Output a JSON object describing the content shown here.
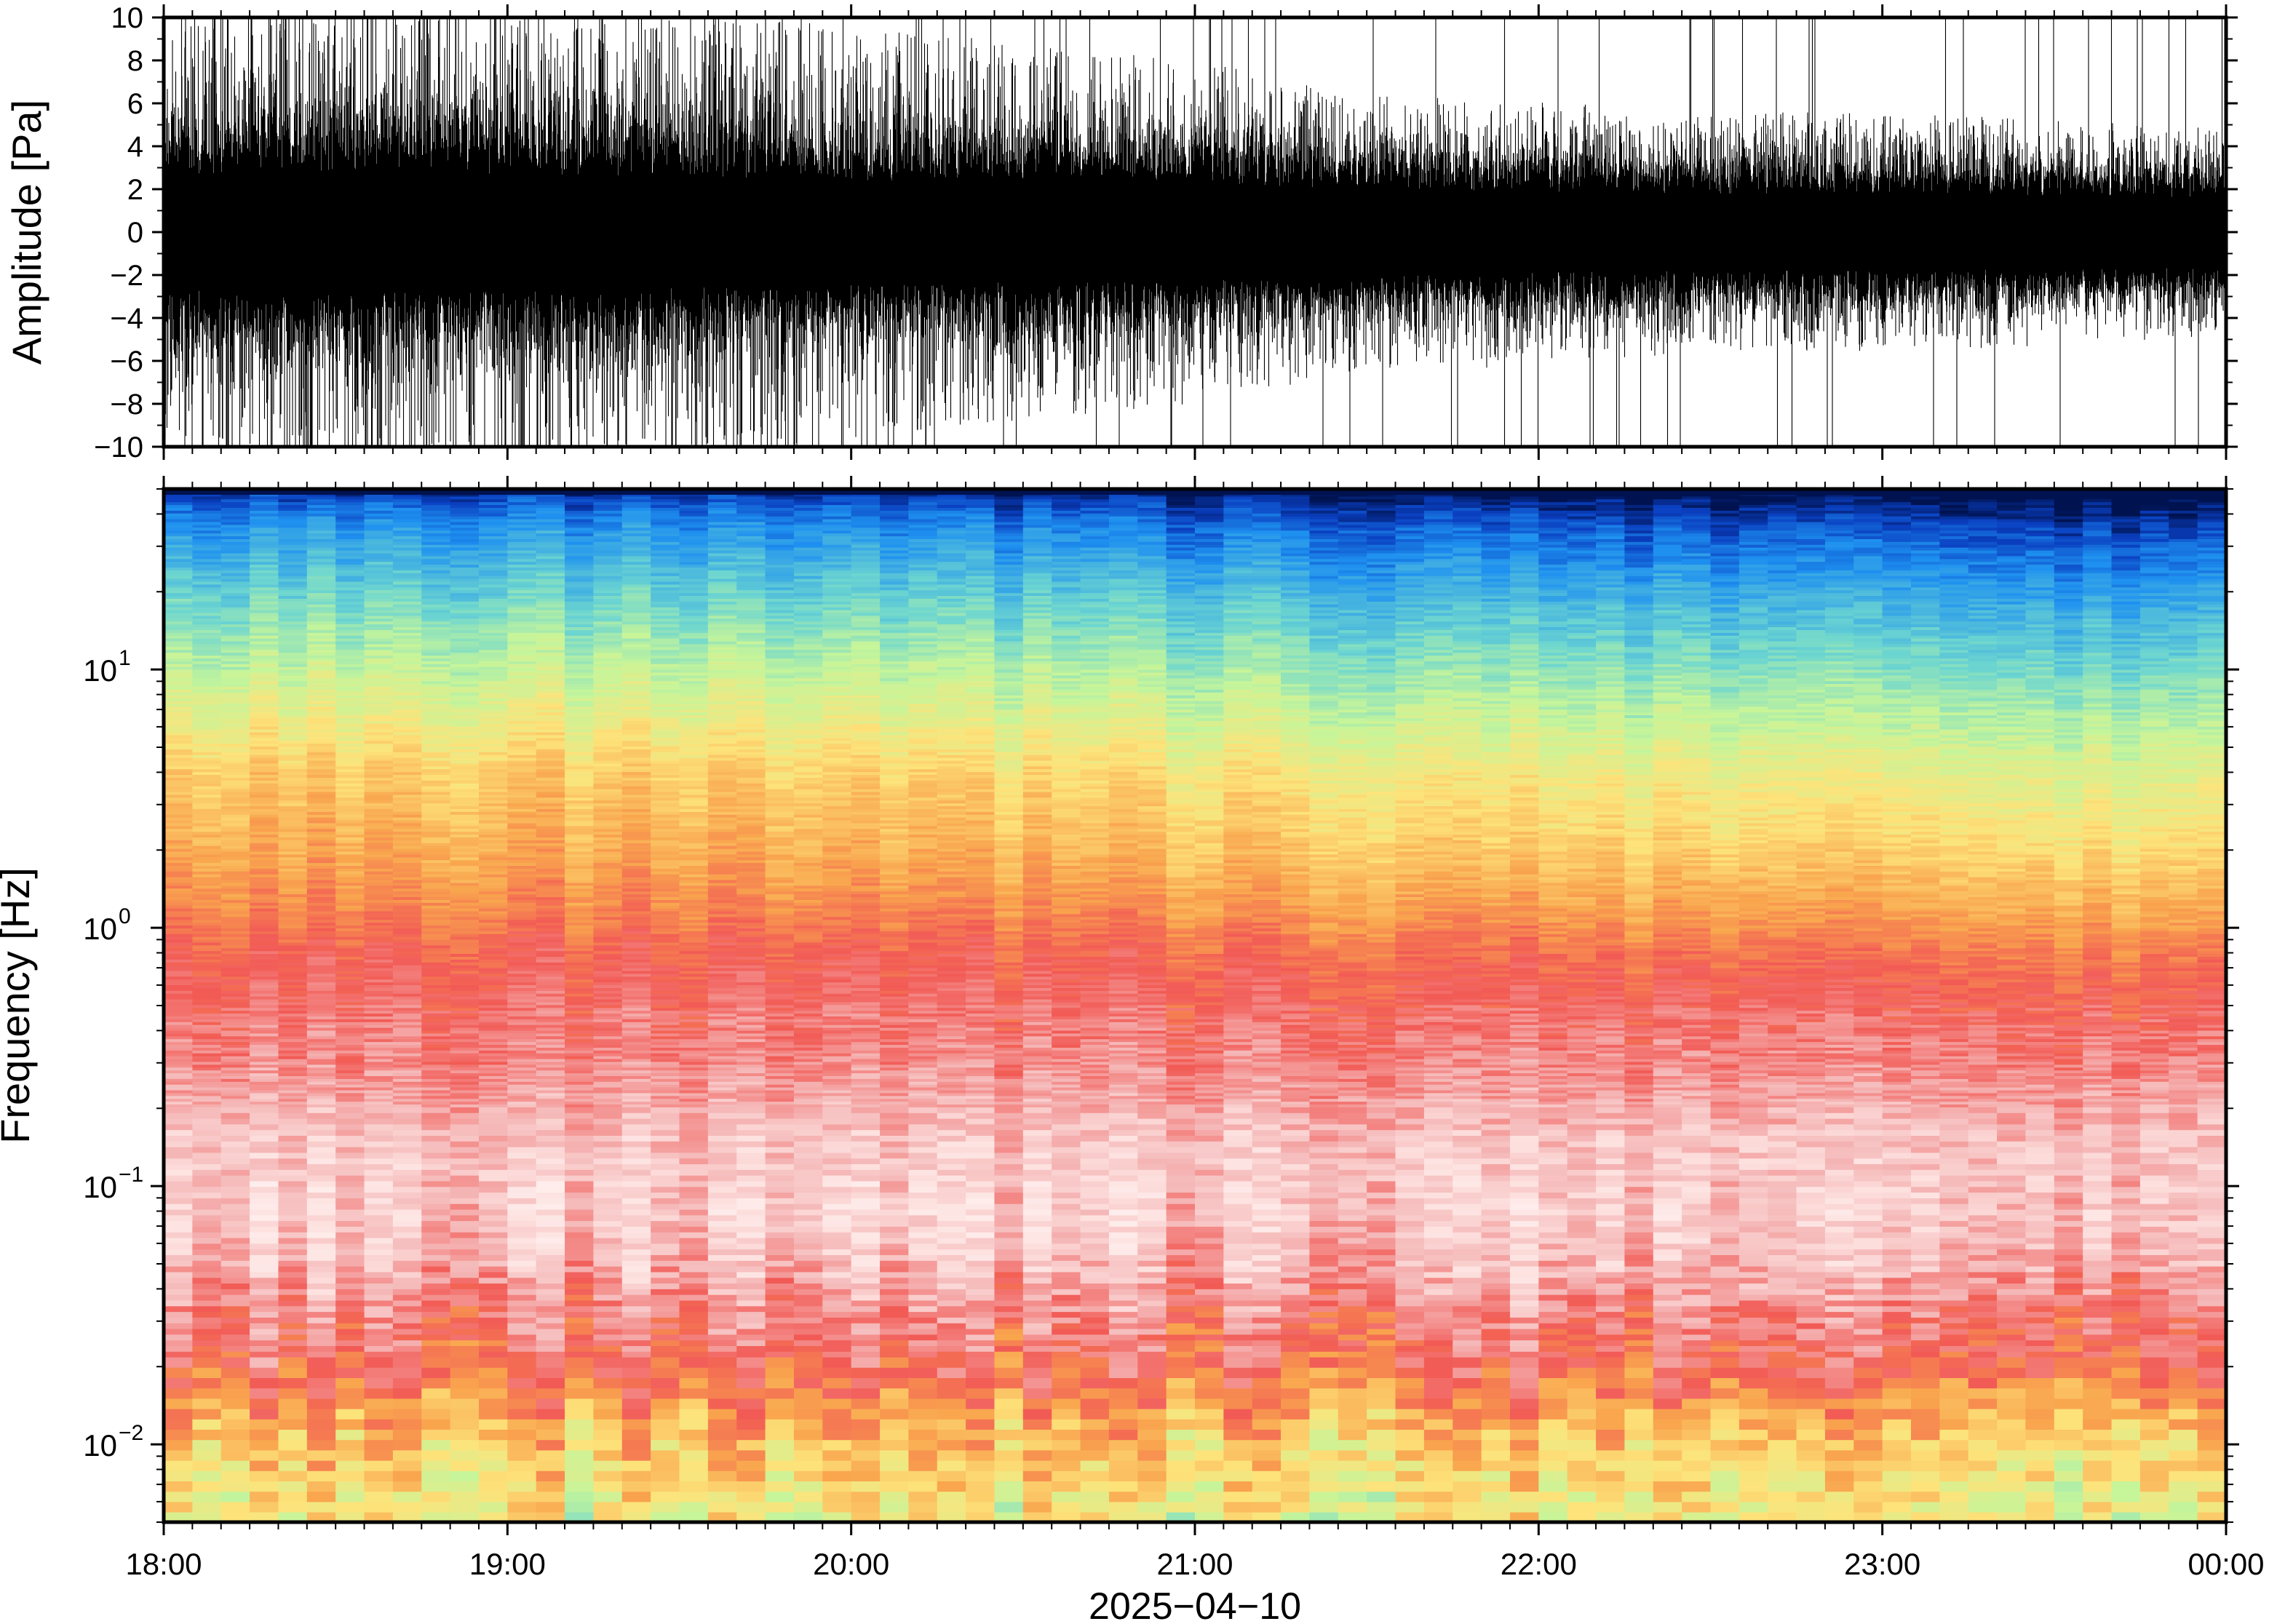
{
  "chart_data": [
    {
      "type": "line",
      "panel": "waveform",
      "ylabel": "Amplitude [Pa]",
      "ylim": [
        -10,
        10
      ],
      "yticks": [
        -10,
        -8,
        -6,
        -4,
        -2,
        0,
        2,
        4,
        6,
        8,
        10
      ],
      "ytick_labels": [
        "−10",
        "−8",
        "−6",
        "−4",
        "−2",
        "0",
        "2",
        "4",
        "6",
        "8",
        "10"
      ],
      "xlim": [
        "2025-04-10 18:00",
        "2025-04-11 00:00"
      ],
      "line_color": "#000000",
      "envelope_profile": {
        "x": [
          "18:00",
          "18:30",
          "19:00",
          "19:30",
          "20:00",
          "20:30",
          "21:00",
          "21:30",
          "22:00",
          "22:30",
          "23:00",
          "23:30",
          "00:00"
        ],
        "typical_peak": [
          6.5,
          7.5,
          7.0,
          6.5,
          6.0,
          5.5,
          5.0,
          4.0,
          3.8,
          3.5,
          3.5,
          3.3,
          3.0
        ],
        "bulk_amplitude": [
          3.0,
          3.2,
          3.0,
          2.9,
          2.7,
          2.6,
          2.5,
          2.2,
          2.1,
          2.0,
          2.0,
          1.9,
          1.8
        ]
      },
      "clipping": "many spikes reach the ±10 Pa limits, most frequent before 21:00"
    },
    {
      "type": "heatmap",
      "panel": "spectrogram",
      "ylabel": "Frequency [Hz]",
      "yscale": "log",
      "ylim": [
        0.005,
        50
      ],
      "yticks": [
        0.01,
        0.1,
        1,
        10
      ],
      "ytick_labels": [
        {
          "base": "10",
          "exp": "−2"
        },
        {
          "base": "10",
          "exp": "−1"
        },
        {
          "base": "10",
          "exp": "0"
        },
        {
          "base": "10",
          "exp": "1"
        }
      ],
      "xlabel": "2025−04−10",
      "xticks": [
        "18:00",
        "19:00",
        "20:00",
        "21:00",
        "22:00",
        "23:00",
        "00:00"
      ],
      "xlim": [
        "2025-04-10 18:00",
        "2025-04-11 00:00"
      ],
      "colormap": [
        {
          "level": 0.0,
          "color": "#00124f"
        },
        {
          "level": 0.06,
          "color": "#0a3fc0"
        },
        {
          "level": 0.14,
          "color": "#1e90f0"
        },
        {
          "level": 0.26,
          "color": "#6dd6d0"
        },
        {
          "level": 0.36,
          "color": "#c6f59a"
        },
        {
          "level": 0.46,
          "color": "#fde37a"
        },
        {
          "level": 0.56,
          "color": "#f9a54e"
        },
        {
          "level": 0.66,
          "color": "#f25a55"
        },
        {
          "level": 0.78,
          "color": "#f5b8b8"
        },
        {
          "level": 0.86,
          "color": "#fde2e0"
        },
        {
          "level": 1.0,
          "color": "#ffffff"
        }
      ],
      "profile_description": "relative spectral level (0 = lowest/dark blue, 1 = highest/white) versus frequency, time-averaged",
      "level_profile": [
        {
          "hz": 50,
          "level": 0.0
        },
        {
          "hz": 45,
          "level": 0.05
        },
        {
          "hz": 35,
          "level": 0.12
        },
        {
          "hz": 20,
          "level": 0.22
        },
        {
          "hz": 12,
          "level": 0.3
        },
        {
          "hz": 7,
          "level": 0.38
        },
        {
          "hz": 4,
          "level": 0.46
        },
        {
          "hz": 2,
          "level": 0.52
        },
        {
          "hz": 1.2,
          "level": 0.58
        },
        {
          "hz": 0.8,
          "level": 0.64
        },
        {
          "hz": 0.5,
          "level": 0.68
        },
        {
          "hz": 0.3,
          "level": 0.72
        },
        {
          "hz": 0.15,
          "level": 0.8
        },
        {
          "hz": 0.08,
          "level": 0.82
        },
        {
          "hz": 0.05,
          "level": 0.78
        },
        {
          "hz": 0.03,
          "level": 0.7
        },
        {
          "hz": 0.02,
          "level": 0.66
        },
        {
          "hz": 0.015,
          "level": 0.58
        },
        {
          "hz": 0.01,
          "level": 0.5
        },
        {
          "hz": 0.005,
          "level": 0.42
        }
      ],
      "time_trend": {
        "x": [
          "18:00",
          "19:00",
          "20:00",
          "21:00",
          "22:00",
          "23:00",
          "00:00"
        ],
        "level_offset_above_1hz": [
          0.03,
          0.04,
          0.02,
          0.0,
          -0.03,
          -0.04,
          -0.05
        ]
      }
    }
  ]
}
